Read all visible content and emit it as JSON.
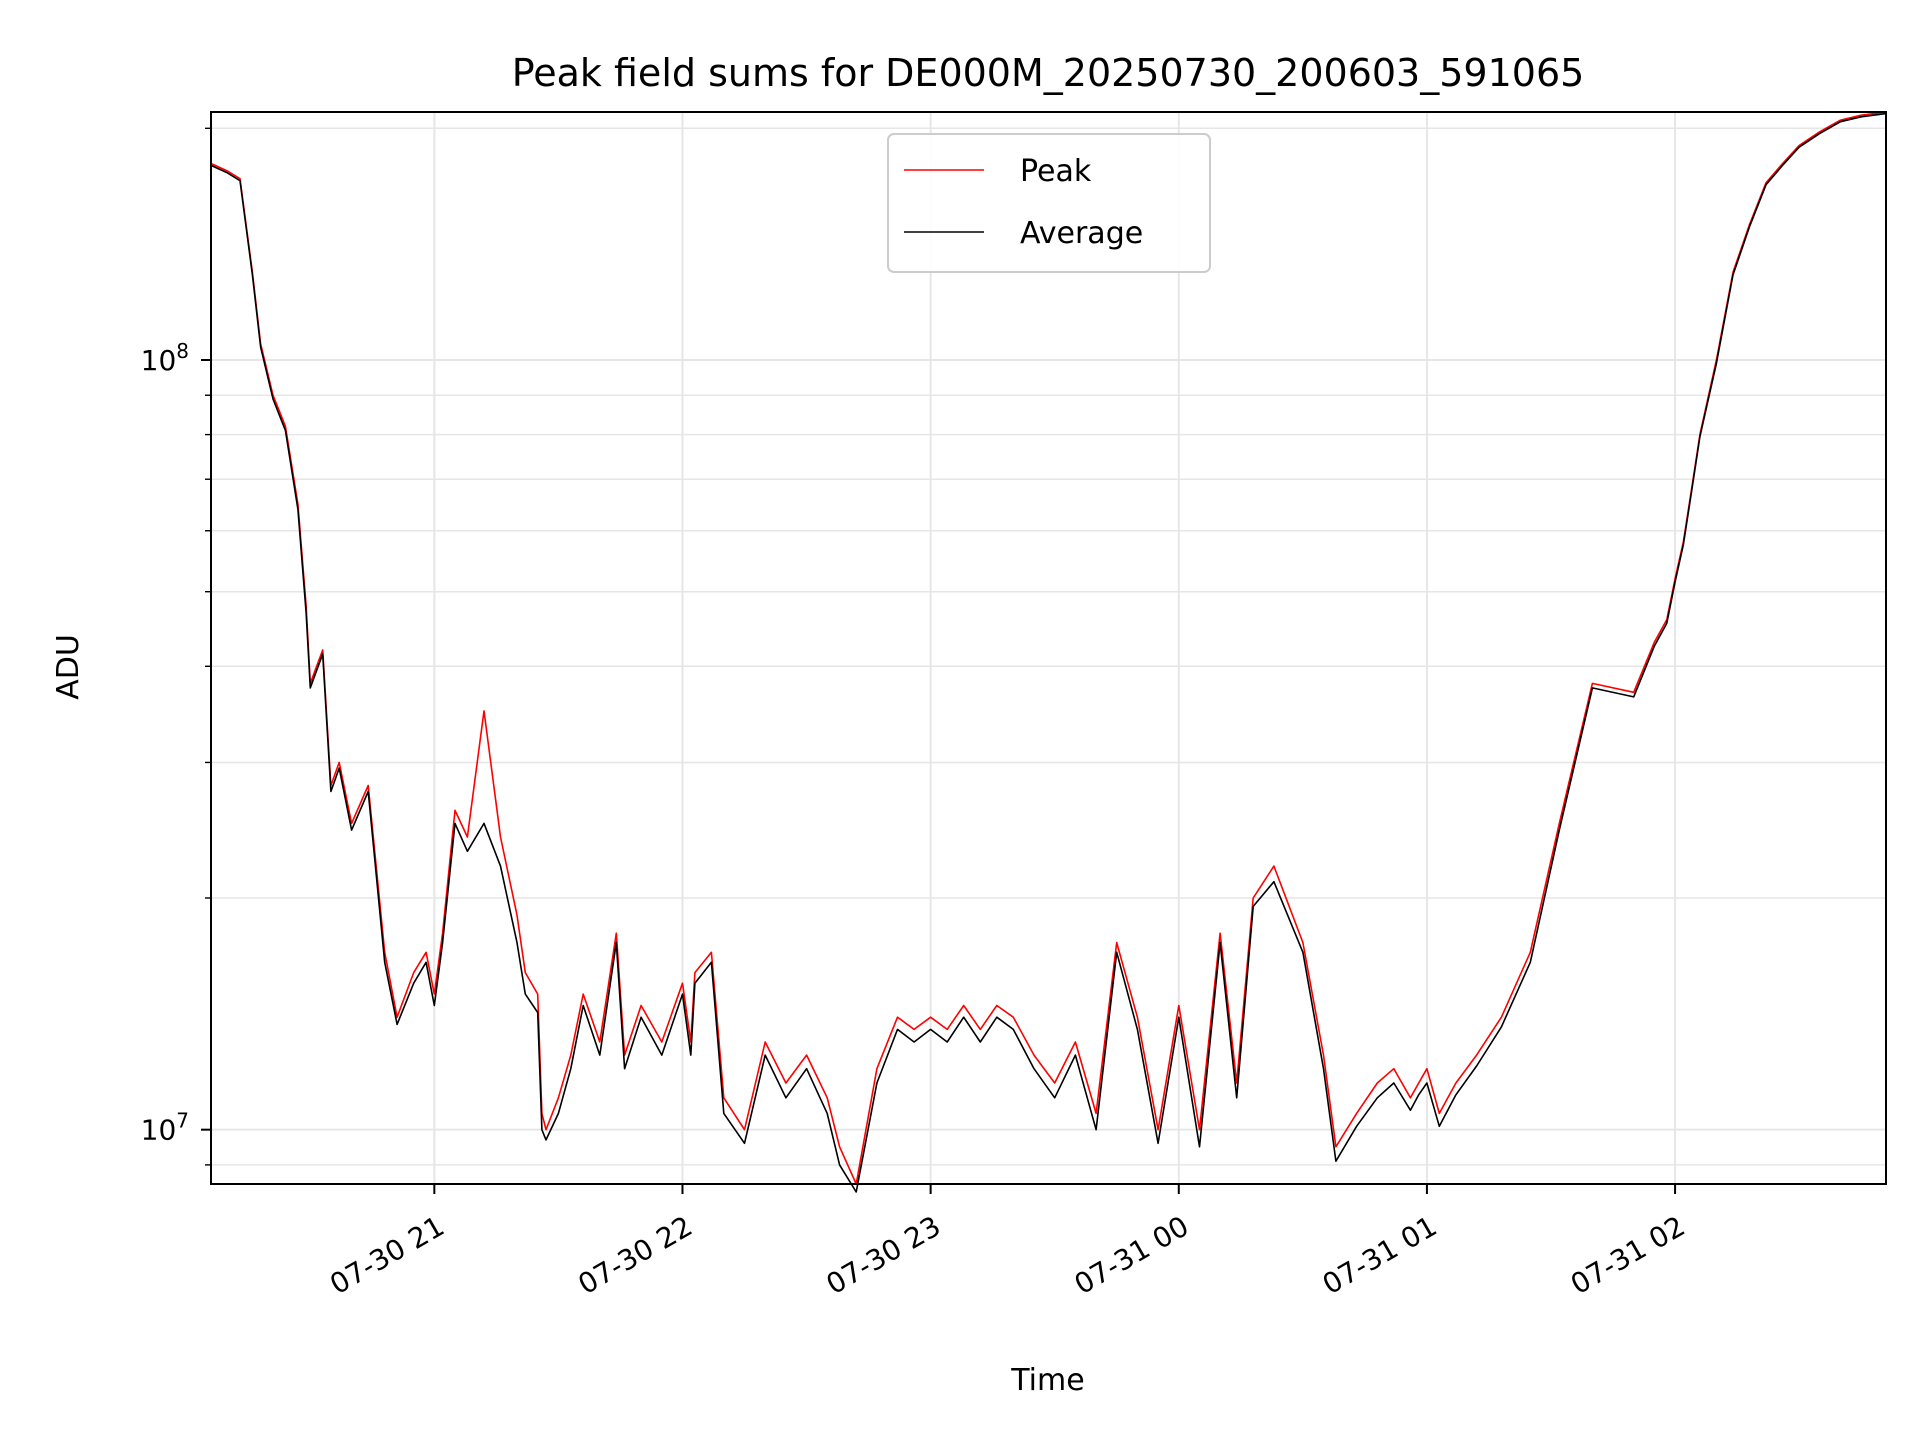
{
  "chart_data": {
    "type": "line",
    "title": "Peak field sums for DE000M_20250730_200603_591065",
    "xlabel": "Time",
    "ylabel": "ADU",
    "yscale": "log",
    "ylim": [
      8500000,
      210000000
    ],
    "xlim": [
      "2025-07-30 20:06",
      "2025-07-31 02:51"
    ],
    "grid": true,
    "legend_position": "upper center",
    "x_ticks": [
      {
        "value": "2025-07-30 21:00",
        "label": "07-30 21"
      },
      {
        "value": "2025-07-30 22:00",
        "label": "07-30 22"
      },
      {
        "value": "2025-07-30 23:00",
        "label": "07-30 23"
      },
      {
        "value": "2025-07-31 00:00",
        "label": "07-31 00"
      },
      {
        "value": "2025-07-31 01:00",
        "label": "07-31 01"
      },
      {
        "value": "2025-07-31 02:00",
        "label": "07-31 02"
      }
    ],
    "y_major_ticks": [
      {
        "value": 10000000,
        "mantissa": "10",
        "exponent": "7"
      },
      {
        "value": 100000000,
        "mantissa": "10",
        "exponent": "8"
      }
    ],
    "x": [
      "2025-07-30 20:06",
      "2025-07-30 20:10",
      "2025-07-30 20:13",
      "2025-07-30 20:16",
      "2025-07-30 20:18",
      "2025-07-30 20:21",
      "2025-07-30 20:24",
      "2025-07-30 20:27",
      "2025-07-30 20:29",
      "2025-07-30 20:30",
      "2025-07-30 20:33",
      "2025-07-30 20:35",
      "2025-07-30 20:37",
      "2025-07-30 20:40",
      "2025-07-30 20:44",
      "2025-07-30 20:48",
      "2025-07-30 20:51",
      "2025-07-30 20:55",
      "2025-07-30 20:58",
      "2025-07-30 21:00",
      "2025-07-30 21:02",
      "2025-07-30 21:05",
      "2025-07-30 21:08",
      "2025-07-30 21:12",
      "2025-07-30 21:16",
      "2025-07-30 21:20",
      "2025-07-30 21:22",
      "2025-07-30 21:25",
      "2025-07-30 21:26",
      "2025-07-30 21:27",
      "2025-07-30 21:30",
      "2025-07-30 21:33",
      "2025-07-30 21:36",
      "2025-07-30 21:40",
      "2025-07-30 21:44",
      "2025-07-30 21:46",
      "2025-07-30 21:50",
      "2025-07-30 21:55",
      "2025-07-30 22:00",
      "2025-07-30 22:02",
      "2025-07-30 22:03",
      "2025-07-30 22:07",
      "2025-07-30 22:10",
      "2025-07-30 22:15",
      "2025-07-30 22:20",
      "2025-07-30 22:25",
      "2025-07-30 22:30",
      "2025-07-30 22:35",
      "2025-07-30 22:38",
      "2025-07-30 22:42",
      "2025-07-30 22:47",
      "2025-07-30 22:52",
      "2025-07-30 22:56",
      "2025-07-30 23:00",
      "2025-07-30 23:04",
      "2025-07-30 23:08",
      "2025-07-30 23:12",
      "2025-07-30 23:16",
      "2025-07-30 23:20",
      "2025-07-30 23:25",
      "2025-07-30 23:30",
      "2025-07-30 23:35",
      "2025-07-30 23:40",
      "2025-07-30 23:45",
      "2025-07-30 23:50",
      "2025-07-30 23:55",
      "2025-07-31 00:00",
      "2025-07-31 00:05",
      "2025-07-31 00:10",
      "2025-07-31 00:14",
      "2025-07-31 00:18",
      "2025-07-31 00:23",
      "2025-07-31 00:30",
      "2025-07-31 00:35",
      "2025-07-31 00:38",
      "2025-07-31 00:43",
      "2025-07-31 00:48",
      "2025-07-31 00:52",
      "2025-07-31 00:56",
      "2025-07-31 00:58",
      "2025-07-31 01:00",
      "2025-07-31 01:03",
      "2025-07-31 01:07",
      "2025-07-31 01:12",
      "2025-07-31 01:18",
      "2025-07-31 01:25",
      "2025-07-31 01:32",
      "2025-07-31 01:40",
      "2025-07-31 01:50",
      "2025-07-31 01:55",
      "2025-07-31 01:58",
      "2025-07-31 02:00",
      "2025-07-31 02:02",
      "2025-07-31 02:04",
      "2025-07-31 02:06",
      "2025-07-31 02:10",
      "2025-07-31 02:14",
      "2025-07-31 02:18",
      "2025-07-31 02:22",
      "2025-07-31 02:26",
      "2025-07-31 02:30",
      "2025-07-31 02:35",
      "2025-07-31 02:40",
      "2025-07-31 02:45",
      "2025-07-31 02:51"
    ],
    "series": [
      {
        "name": "Peak",
        "color": "#ff0000",
        "values": [
          180000000,
          176000000,
          172000000,
          130000000,
          105000000,
          90000000,
          82000000,
          65000000,
          48000000,
          38000000,
          42000000,
          28000000,
          30000000,
          25000000,
          28000000,
          17000000,
          14000000,
          16000000,
          17000000,
          15000000,
          18000000,
          26000000,
          24000000,
          35000000,
          24000000,
          19000000,
          16000000,
          15000000,
          10500000,
          10000000,
          11000000,
          12500000,
          15000000,
          13000000,
          18000000,
          12500000,
          14500000,
          13000000,
          15500000,
          13000000,
          16000000,
          17000000,
          11000000,
          10000000,
          13000000,
          11500000,
          12500000,
          11000000,
          9500000,
          8500000,
          12000000,
          14000000,
          13500000,
          14000000,
          13500000,
          14500000,
          13500000,
          14500000,
          14000000,
          12500000,
          11500000,
          13000000,
          10500000,
          17500000,
          14000000,
          10000000,
          14500000,
          10000000,
          18000000,
          11500000,
          20000000,
          22000000,
          17500000,
          12500000,
          9500000,
          10500000,
          11500000,
          12000000,
          11000000,
          11500000,
          12000000,
          10500000,
          11500000,
          12500000,
          14000000,
          17000000,
          25000000,
          38000000,
          37000000,
          43000000,
          46000000,
          52000000,
          58000000,
          68000000,
          80000000,
          100000000,
          130000000,
          150000000,
          170000000,
          180000000,
          190000000,
          198000000,
          205000000,
          208000000,
          210000000
        ]
      },
      {
        "name": "Average",
        "color": "#000000",
        "values": [
          179000000,
          175000000,
          171000000,
          129000000,
          104000000,
          89000000,
          81000000,
          64000000,
          47000000,
          37500000,
          41500000,
          27500000,
          29500000,
          24500000,
          27500000,
          16500000,
          13700000,
          15500000,
          16500000,
          14500000,
          17500000,
          25000000,
          23000000,
          25000000,
          22000000,
          17500000,
          15000000,
          14200000,
          10000000,
          9700000,
          10500000,
          12000000,
          14500000,
          12500000,
          17500000,
          12000000,
          14000000,
          12500000,
          15000000,
          12500000,
          15500000,
          16500000,
          10500000,
          9600000,
          12500000,
          11000000,
          12000000,
          10500000,
          9000000,
          8300000,
          11500000,
          13500000,
          13000000,
          13500000,
          13000000,
          14000000,
          13000000,
          14000000,
          13500000,
          12000000,
          11000000,
          12500000,
          10000000,
          17000000,
          13500000,
          9600000,
          14000000,
          9500000,
          17500000,
          11000000,
          19500000,
          21000000,
          17000000,
          12000000,
          9100000,
          10100000,
          11000000,
          11500000,
          10600000,
          11100000,
          11500000,
          10100000,
          11100000,
          12100000,
          13600000,
          16500000,
          24500000,
          37500000,
          36500000,
          42500000,
          45500000,
          51500000,
          57500000,
          67500000,
          79500000,
          99000000,
          129000000,
          149000000,
          169000000,
          179000000,
          189000000,
          197000000,
          204000000,
          207000000,
          209000000
        ]
      }
    ]
  }
}
